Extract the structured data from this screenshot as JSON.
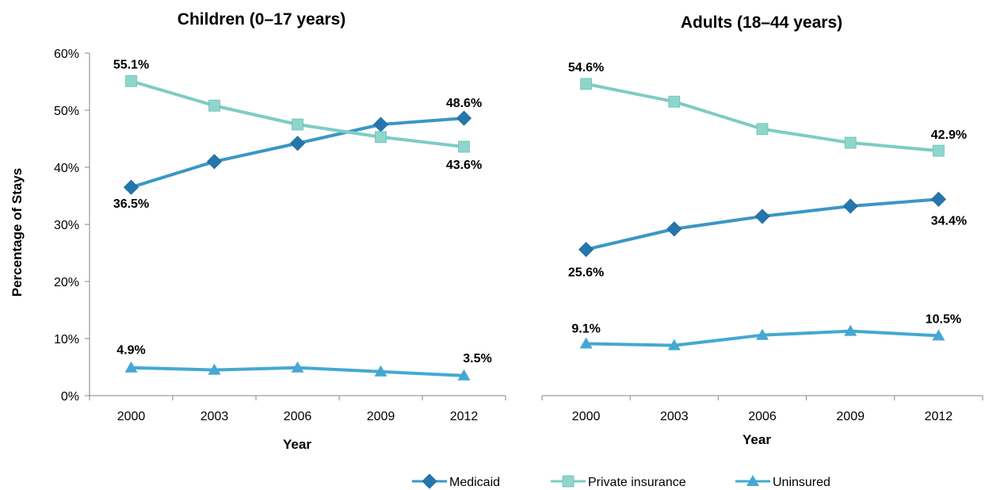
{
  "chart_data": [
    {
      "type": "line",
      "title": "Children (0–17 years)",
      "xlabel": "Year",
      "ylabel": "Percentage of Stays",
      "ylim": [
        0,
        60
      ],
      "y_ticks": [
        "0%",
        "10%",
        "20%",
        "30%",
        "40%",
        "50%",
        "60%"
      ],
      "categories": [
        "2000",
        "2003",
        "2006",
        "2009",
        "2012"
      ],
      "series": [
        {
          "name": "Medicaid",
          "values": [
            36.5,
            41.0,
            44.2,
            47.5,
            48.6
          ],
          "labels": {
            "0": "36.5%",
            "4": "48.6%"
          }
        },
        {
          "name": "Private insurance",
          "values": [
            55.1,
            50.8,
            47.5,
            45.3,
            43.6
          ],
          "labels": {
            "0": "55.1%",
            "4": "43.6%"
          }
        },
        {
          "name": "Uninsured",
          "values": [
            4.9,
            4.5,
            4.9,
            4.2,
            3.5
          ],
          "labels": {
            "0": "4.9%",
            "4": "3.5%"
          }
        }
      ]
    },
    {
      "type": "line",
      "title": "Adults (18–44 years)",
      "xlabel": "Year",
      "ylabel": "",
      "ylim": [
        0,
        60
      ],
      "categories": [
        "2000",
        "2003",
        "2006",
        "2009",
        "2012"
      ],
      "series": [
        {
          "name": "Medicaid",
          "values": [
            25.6,
            29.2,
            31.4,
            33.2,
            34.4
          ],
          "labels": {
            "0": "25.6%",
            "4": "34.4%"
          }
        },
        {
          "name": "Private insurance",
          "values": [
            54.6,
            51.5,
            46.7,
            44.3,
            42.9
          ],
          "labels": {
            "0": "54.6%",
            "4": "42.9%"
          }
        },
        {
          "name": "Uninsured",
          "values": [
            9.1,
            8.8,
            10.6,
            11.3,
            10.5
          ],
          "labels": {
            "0": "9.1%",
            "4": "10.5%"
          }
        }
      ]
    }
  ],
  "legend": {
    "position": "bottom-right",
    "items": [
      {
        "name": "Medicaid",
        "marker": "diamond",
        "color": "#3A97C4",
        "marker_color": "#2476AD"
      },
      {
        "name": "Private insurance",
        "marker": "square",
        "color": "#7ECCC4",
        "marker_color": "#8ED6CB"
      },
      {
        "name": "Uninsured",
        "marker": "triangle",
        "color": "#45A8D2",
        "marker_color": "#45A8D2"
      }
    ]
  },
  "colors": {
    "medicaid_line": "#3A97C4",
    "medicaid_marker": "#2476AD",
    "private_line": "#7ECCC4",
    "private_marker": "#8ED6CB",
    "uninsured": "#45A8D2",
    "axis": "#868686"
  }
}
